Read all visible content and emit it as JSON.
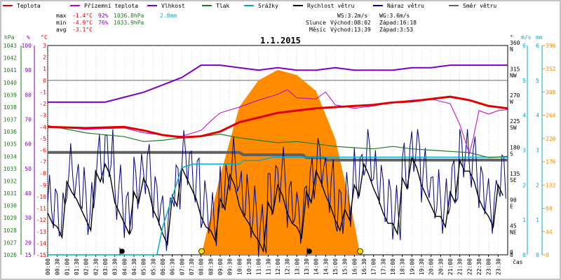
{
  "chart_data": {
    "type": "line",
    "title": "1.1.2015",
    "legend": [
      {
        "name": "Teplota",
        "color": "#e00000"
      },
      {
        "name": "Přízemní teplota",
        "color": "#c000c0"
      },
      {
        "name": "Vlhkost",
        "color": "#8000c0"
      },
      {
        "name": "Tlak",
        "color": "#1f7a1f"
      },
      {
        "name": "Srážky",
        "color": "#00aacc"
      },
      {
        "name": "Rychlost větru",
        "color": "#000000"
      },
      {
        "name": "Náraz větru",
        "color": "#000080"
      },
      {
        "name": "Směr větru",
        "color": "#606060"
      }
    ],
    "stats": {
      "max_label": "max",
      "max_temp": "-1.4°C",
      "max_hum": "92%",
      "max_press": "1036.8hPa",
      "precip": "2.8mm",
      "min_label": "min",
      "min_temp": "-4.9°C",
      "min_hum": "76%",
      "min_press": "1033.9hPa",
      "avg_label": "avg",
      "avg_temp": "-3.1°C"
    },
    "wind_info": {
      "ws": "WS:3.2m/s",
      "wg": "WG:3.6m/s"
    },
    "sun": {
      "label": "Slunce",
      "rise": "Východ:08:02",
      "set": "Západ:16:18"
    },
    "moon": {
      "label": "Měsíc",
      "rise": "Východ:13:39",
      "set": "Západ:3:53"
    },
    "axes": {
      "hpa_label": "hPa",
      "hpa_ticks": [
        1043,
        1042,
        1041,
        1040,
        1039,
        1038,
        1037,
        1036,
        1035,
        1034,
        1033,
        1032,
        1031,
        1030,
        1029,
        1028,
        1027,
        1026
      ],
      "hum_label": "%",
      "hum_ticks": [
        100,
        90,
        80,
        70,
        60,
        50,
        40,
        30,
        20,
        15
      ],
      "temp_label": "°C",
      "temp_ticks": [
        3,
        2,
        1,
        0,
        -1,
        -2,
        -3,
        -4,
        -5,
        -6,
        -7,
        -8,
        -9,
        -10,
        -11,
        -12,
        -13,
        -14,
        -15
      ],
      "dir_label": "°",
      "dir_ticks": [
        "360",
        "N",
        "315",
        "NW",
        "270",
        "W",
        "225",
        "SW",
        "180",
        "S",
        "135",
        "SE",
        "90",
        "E",
        "45",
        "NE",
        "0"
      ],
      "ms_label": "m/s",
      "ms_ticks": [
        6,
        5,
        4,
        3,
        2,
        1,
        0
      ],
      "mm_label": "mm",
      "mm_ticks": [
        6,
        5,
        4,
        3,
        2,
        1,
        0
      ],
      "lux_ticks": [
        396,
        352,
        308,
        264,
        220,
        176,
        132,
        88,
        44,
        0
      ],
      "x_label": "čas",
      "x_ticks": [
        "00:00",
        "00:30",
        "01:00",
        "01:30",
        "02:00",
        "02:30",
        "03:00",
        "03:30",
        "04:00",
        "04:30",
        "05:00",
        "05:30",
        "06:00",
        "06:30",
        "07:00",
        "07:30",
        "08:00",
        "08:30",
        "09:00",
        "09:30",
        "10:00",
        "10:30",
        "11:00",
        "11:30",
        "12:00",
        "12:30",
        "13:00",
        "13:30",
        "14:00",
        "14:30",
        "15:00",
        "15:30",
        "16:00",
        "16:30",
        "17:00",
        "17:30",
        "18:00",
        "18:30",
        "19:00",
        "19:30",
        "20:00",
        "20:30",
        "21:00",
        "21:30",
        "22:00",
        "22:30",
        "23:00",
        "23:30"
      ]
    },
    "series": [
      {
        "name": "Teplota",
        "hours": [
          0,
          2,
          4,
          5,
          6,
          7,
          8,
          9,
          10,
          11,
          12,
          13,
          14,
          15,
          16,
          17,
          18,
          19,
          20,
          21,
          22,
          23,
          24
        ],
        "values": [
          -4.0,
          -4.1,
          -4.0,
          -4.3,
          -4.7,
          -4.9,
          -4.8,
          -4.4,
          -3.6,
          -3.2,
          -2.8,
          -2.6,
          -2.4,
          -2.3,
          -2.2,
          -2.1,
          -1.9,
          -1.8,
          -1.6,
          -1.4,
          -1.7,
          -2.2,
          -2.4
        ]
      },
      {
        "name": "Přízemní teplota",
        "hours": [
          0,
          2,
          4,
          5,
          6,
          7,
          8,
          8.5,
          9,
          10,
          11,
          12,
          12.5,
          13,
          14,
          14.5,
          15,
          16,
          17,
          18,
          19,
          20,
          21,
          21.5,
          22,
          22.2,
          22.5,
          23,
          23.5,
          24
        ],
        "values": [
          -4.0,
          -4.2,
          -4.1,
          -4.5,
          -4.7,
          -4.8,
          -4.3,
          -3.5,
          -2.8,
          -2.3,
          -1.7,
          -1.2,
          -0.8,
          -1.5,
          -1.6,
          -1.0,
          -2.1,
          -2.4,
          -2.2,
          -1.9,
          -1.7,
          -1.6,
          -2.0,
          -3.8,
          -6.3,
          -5.0,
          -2.6,
          -2.9,
          -2.6,
          -2.5
        ]
      },
      {
        "name": "Vlhkost",
        "hours": [
          0,
          3,
          4,
          5,
          6,
          7,
          8,
          9,
          10,
          11,
          12,
          13,
          14,
          15,
          16,
          17,
          18,
          19,
          20,
          21,
          22,
          23,
          24
        ],
        "values": [
          77,
          77,
          79,
          81,
          84,
          87,
          92,
          92,
          91,
          90,
          91,
          90,
          90,
          91,
          90,
          90,
          90,
          91,
          91,
          92,
          92,
          92,
          92
        ]
      },
      {
        "name": "Tlak",
        "hours": [
          0,
          2,
          4,
          5,
          6,
          7,
          8,
          9,
          10,
          11,
          12,
          13,
          14,
          15,
          16,
          17,
          18,
          19,
          20,
          21,
          22,
          23,
          24
        ],
        "values": [
          1036.5,
          1035.9,
          1035.6,
          1035.2,
          1035.3,
          1035.5,
          1035.6,
          1035.8,
          1035.5,
          1035.3,
          1035.1,
          1035.2,
          1035.0,
          1034.8,
          1034.7,
          1034.6,
          1034.8,
          1034.6,
          1034.5,
          1034.4,
          1034.3,
          1033.9,
          1034.0
        ]
      },
      {
        "name": "Srážky",
        "hours": [
          0,
          5.7,
          6,
          7,
          7.6,
          8,
          10,
          10.2,
          11,
          11.8,
          24
        ],
        "values": [
          0,
          0,
          0.8,
          2.5,
          2.6,
          2.6,
          2.6,
          2.7,
          2.7,
          2.8,
          2.8
        ]
      },
      {
        "name": "Směr větru",
        "hours": [
          0,
          10,
          10.2,
          13.3,
          13.5,
          14.4,
          14.6,
          24
        ],
        "values": [
          176,
          176,
          172,
          172,
          167,
          167,
          163,
          163
        ]
      },
      {
        "name": "Sluneční svit",
        "hours": [
          8.02,
          9,
          10,
          11,
          12,
          13,
          14,
          15,
          16,
          16.3
        ],
        "values": [
          0,
          150,
          280,
          330,
          350,
          340,
          310,
          220,
          60,
          0
        ]
      }
    ],
    "wind_speed": [
      1.2,
      0.8,
      2.1,
      1.6,
      1.0,
      2.4,
      2.6,
      1.5,
      0.9,
      1.8,
      2.2,
      1.3,
      0.6,
      1.7,
      2.5,
      1.9,
      1.1,
      0.7,
      1.6,
      2.3,
      1.4,
      0.9,
      0.4,
      1.5,
      2.0,
      1.2,
      0.8,
      1.8,
      2.4,
      1.7,
      1.0,
      1.3,
      2.0,
      2.6,
      1.9,
      1.2,
      0.9,
      2.2,
      2.8,
      2.0,
      1.4,
      1.1,
      1.8,
      2.7,
      2.4,
      1.6,
      1.1,
      2.0
    ]
  }
}
